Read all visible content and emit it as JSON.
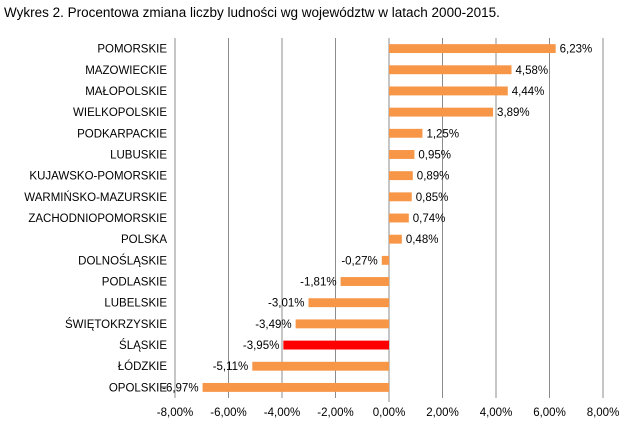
{
  "chart_data": {
    "type": "bar",
    "orientation": "horizontal",
    "title": "Wykres 2. Procentowa zmiana liczby ludności wg województw w latach 2000-2015.",
    "xlabel": "",
    "ylabel": "",
    "xlim": [
      -8,
      8
    ],
    "x_ticks": [
      -8,
      -6,
      -4,
      -2,
      0,
      2,
      4,
      6,
      8
    ],
    "x_tick_labels": [
      "-8,00%",
      "-6,00%",
      "-4,00%",
      "-2,00%",
      "0,00%",
      "2,00%",
      "4,00%",
      "6,00%",
      "8,00%"
    ],
    "grid": "vertical",
    "legend": "none",
    "categories": [
      "POMORSKIE",
      "MAZOWIECKIE",
      "MAŁOPOLSKIE",
      "WIELKOPOLSKIE",
      "PODKARPACKIE",
      "LUBUSKIE",
      "KUJAWSKO-POMORSKIE",
      "WARMIŃSKO-MAZURSKIE",
      "ZACHODNIOPOMORSKIE",
      "POLSKA",
      "DOLNOŚLĄSKIE",
      "PODLASKIE",
      "LUBELSKIE",
      "ŚWIĘTOKRZYSKIE",
      "ŚLĄSKIE",
      "ŁÓDZKIE",
      "OPOLSKIE"
    ],
    "values": [
      6.23,
      4.58,
      4.44,
      3.89,
      1.25,
      0.95,
      0.89,
      0.85,
      0.74,
      0.48,
      -0.27,
      -1.81,
      -3.01,
      -3.49,
      -3.95,
      -5.11,
      -6.97
    ],
    "value_labels": [
      "6,23%",
      "4,58%",
      "4,44%",
      "3,89%",
      "1,25%",
      "0,95%",
      "0,89%",
      "0,85%",
      "0,74%",
      "0,48%",
      "-0,27%",
      "-1,81%",
      "-3,01%",
      "-3,49%",
      "-3,95%",
      "-5,11%",
      "-6,97%"
    ],
    "colors": {
      "bar": "#F79646",
      "highlight": "#FF0000",
      "grid": "#8C8C8C",
      "axis": "#8C8C8C"
    },
    "highlight_category": "ŚLĄSKIE"
  }
}
